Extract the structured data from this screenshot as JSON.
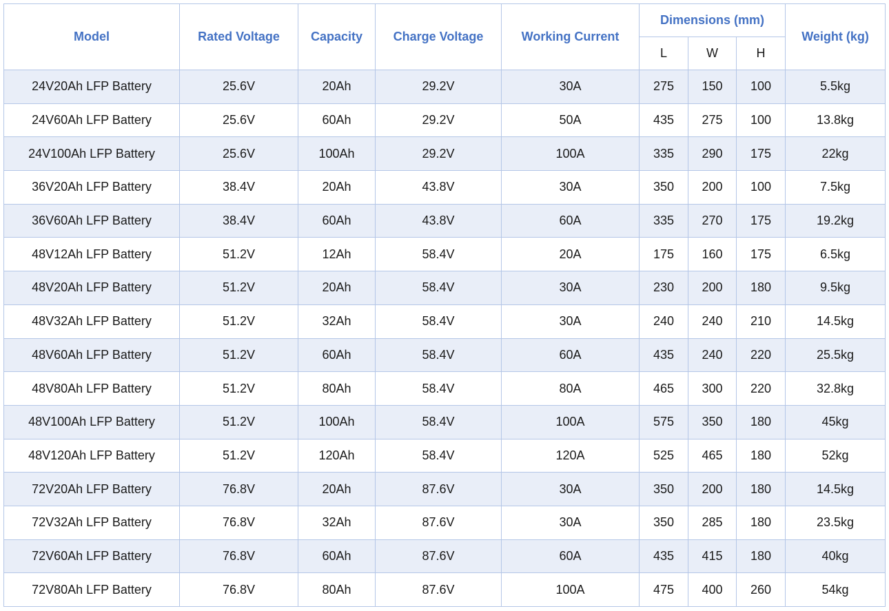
{
  "table": {
    "columns": [
      "Model",
      "Rated Voltage",
      "Capacity",
      "Charge Voltage",
      "Working Current",
      "Dimensions (mm)",
      "Weight (kg)"
    ],
    "sub_columns": [
      "L",
      "W",
      "H"
    ],
    "rows": [
      [
        "24V20Ah LFP Battery",
        "25.6V",
        "20Ah",
        "29.2V",
        "30A",
        "275",
        "150",
        "100",
        "5.5kg"
      ],
      [
        "24V60Ah LFP Battery",
        "25.6V",
        "60Ah",
        "29.2V",
        "50A",
        "435",
        "275",
        "100",
        "13.8kg"
      ],
      [
        "24V100Ah LFP Battery",
        "25.6V",
        "100Ah",
        "29.2V",
        "100A",
        "335",
        "290",
        "175",
        "22kg"
      ],
      [
        "36V20Ah LFP Battery",
        "38.4V",
        "20Ah",
        "43.8V",
        "30A",
        "350",
        "200",
        "100",
        "7.5kg"
      ],
      [
        "36V60Ah LFP Battery",
        "38.4V",
        "60Ah",
        "43.8V",
        "60A",
        "335",
        "270",
        "175",
        "19.2kg"
      ],
      [
        "48V12Ah LFP Battery",
        "51.2V",
        "12Ah",
        "58.4V",
        "20A",
        "175",
        "160",
        "175",
        "6.5kg"
      ],
      [
        "48V20Ah LFP Battery",
        "51.2V",
        "20Ah",
        "58.4V",
        "30A",
        "230",
        "200",
        "180",
        "9.5kg"
      ],
      [
        "48V32Ah LFP Battery",
        "51.2V",
        "32Ah",
        "58.4V",
        "30A",
        "240",
        "240",
        "210",
        "14.5kg"
      ],
      [
        "48V60Ah LFP Battery",
        "51.2V",
        "60Ah",
        "58.4V",
        "60A",
        "435",
        "240",
        "220",
        "25.5kg"
      ],
      [
        "48V80Ah LFP Battery",
        "51.2V",
        "80Ah",
        "58.4V",
        "80A",
        "465",
        "300",
        "220",
        "32.8kg"
      ],
      [
        "48V100Ah LFP Battery",
        "51.2V",
        "100Ah",
        "58.4V",
        "100A",
        "575",
        "350",
        "180",
        "45kg"
      ],
      [
        "48V120Ah LFP Battery",
        "51.2V",
        "120Ah",
        "58.4V",
        "120A",
        "525",
        "465",
        "180",
        "52kg"
      ],
      [
        "72V20Ah LFP Battery",
        "76.8V",
        "20Ah",
        "87.6V",
        "30A",
        "350",
        "200",
        "180",
        "14.5kg"
      ],
      [
        "72V32Ah LFP Battery",
        "76.8V",
        "32Ah",
        "87.6V",
        "30A",
        "350",
        "285",
        "180",
        "23.5kg"
      ],
      [
        "72V60Ah LFP Battery",
        "76.8V",
        "60Ah",
        "87.6V",
        "60A",
        "435",
        "415",
        "180",
        "40kg"
      ],
      [
        "72V80Ah LFP Battery",
        "76.8V",
        "80Ah",
        "87.6V",
        "100A",
        "475",
        "400",
        "260",
        "54kg"
      ]
    ]
  }
}
